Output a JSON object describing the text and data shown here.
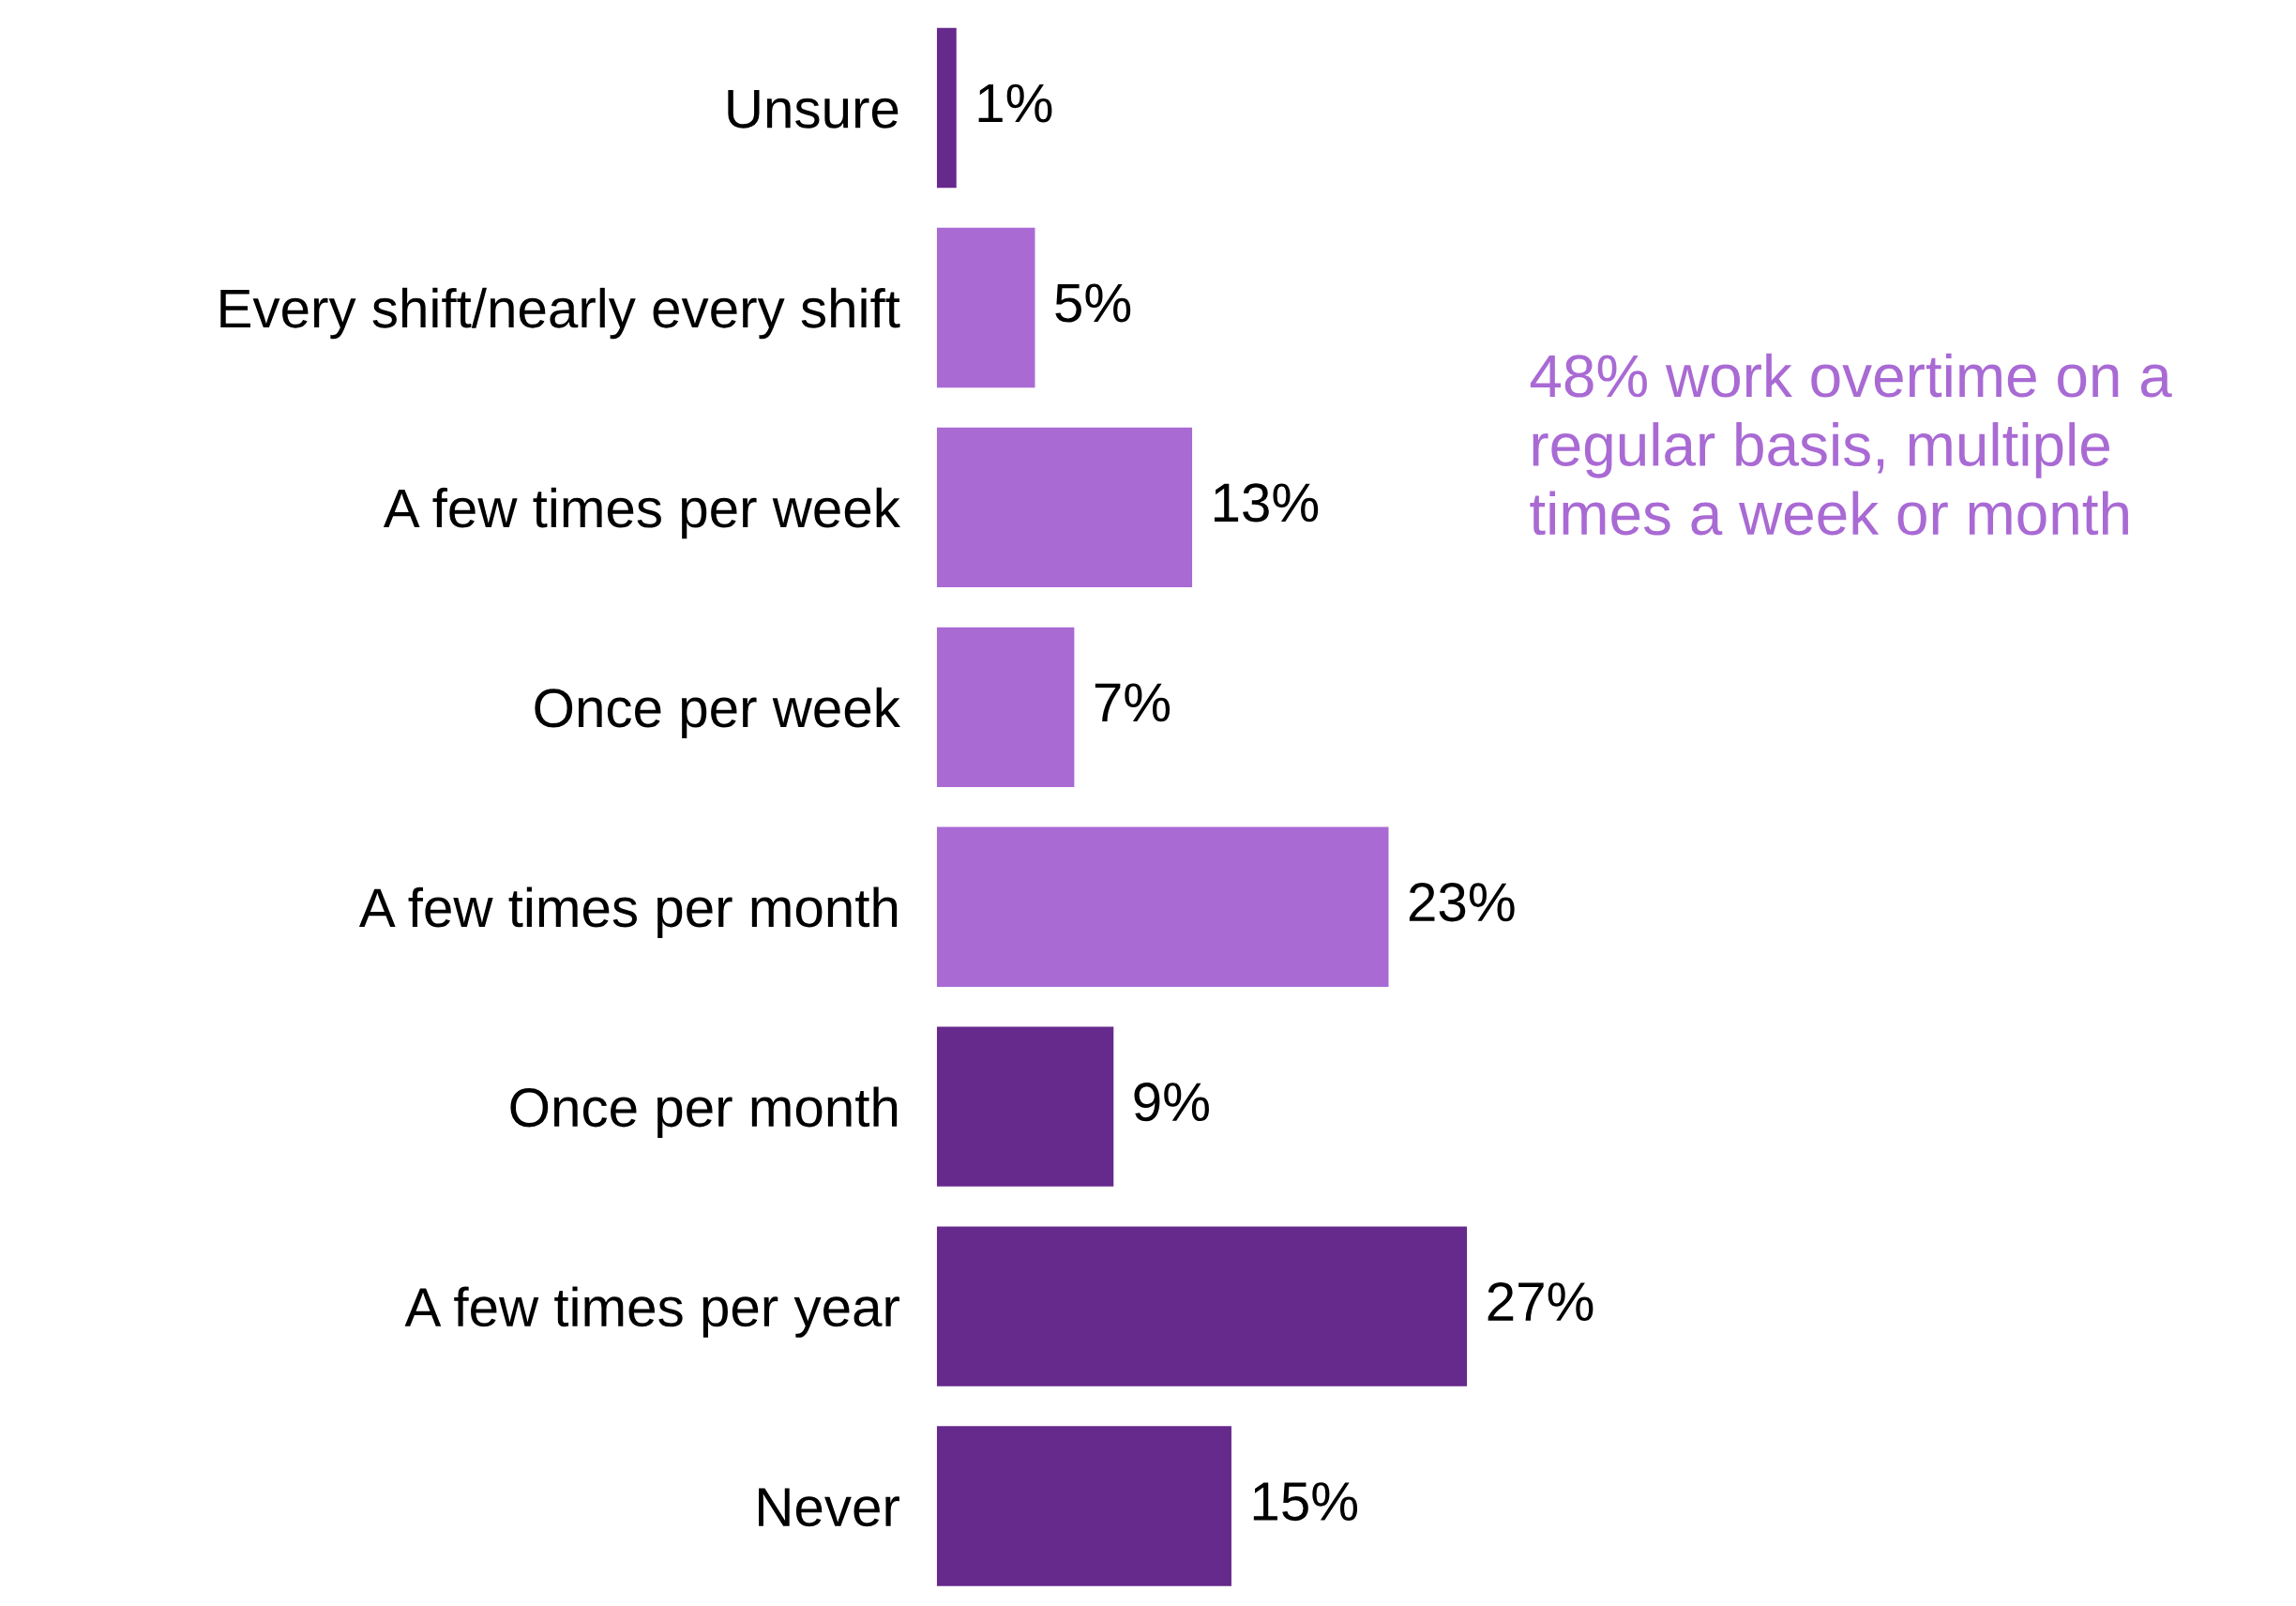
{
  "chart_data": {
    "type": "bar",
    "orientation": "horizontal",
    "categories": [
      "Unsure",
      "Every shift/nearly every shift",
      "A few times per week",
      "Once per week",
      "A few times per month",
      "Once per month",
      "A few times per year",
      "Never"
    ],
    "values": [
      1,
      5,
      13,
      7,
      23,
      9,
      27,
      15
    ],
    "colors": [
      "#66298c",
      "#a96ad4",
      "#a96ad4",
      "#a96ad4",
      "#a96ad4",
      "#66298c",
      "#66298c",
      "#66298c"
    ],
    "value_labels": [
      "1%",
      "5%",
      "13%",
      "7%",
      "23%",
      "9%",
      "27%",
      "15%"
    ],
    "tick_labels": "y",
    "grid": false,
    "legend": false,
    "annotations": [
      "48% work overtime on a\nregular basis, multiple\ntimes a week or month"
    ]
  }
}
